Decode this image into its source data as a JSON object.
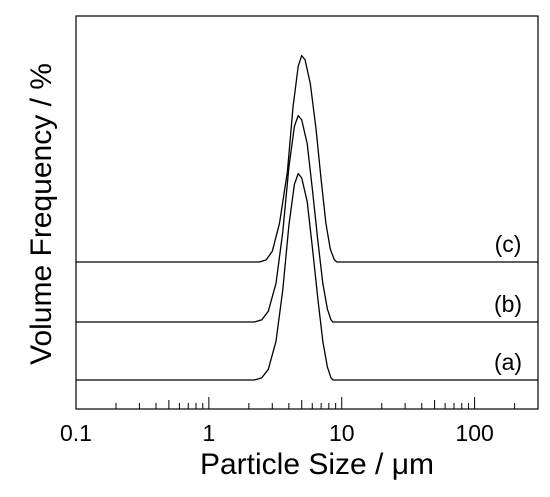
{
  "chart_data": {
    "type": "line",
    "title": "",
    "xlabel": "Particle Size / μm",
    "ylabel": "Volume Frequency / %",
    "xscale": "log",
    "xlim": [
      0.1,
      300
    ],
    "x_ticks": [
      "0.1",
      "1",
      "10",
      "100"
    ],
    "grid": false,
    "legend": "none",
    "line_color": "#000000",
    "series": [
      {
        "label": "(a)",
        "points": [
          [
            0.1,
            0
          ],
          [
            2.2,
            0
          ],
          [
            2.5,
            1
          ],
          [
            2.8,
            5
          ],
          [
            3.2,
            18
          ],
          [
            3.6,
            42
          ],
          [
            4.0,
            72
          ],
          [
            4.4,
            91
          ],
          [
            4.7,
            96
          ],
          [
            5.0,
            94
          ],
          [
            5.5,
            83
          ],
          [
            6.0,
            62
          ],
          [
            6.6,
            38
          ],
          [
            7.2,
            18
          ],
          [
            7.8,
            6
          ],
          [
            8.3,
            1
          ],
          [
            8.6,
            0
          ],
          [
            300,
            0
          ]
        ]
      },
      {
        "label": "(b)",
        "points": [
          [
            0.1,
            0
          ],
          [
            2.2,
            0
          ],
          [
            2.5,
            1
          ],
          [
            2.8,
            5
          ],
          [
            3.2,
            18
          ],
          [
            3.6,
            42
          ],
          [
            4.0,
            72
          ],
          [
            4.4,
            91
          ],
          [
            4.7,
            96
          ],
          [
            5.0,
            94
          ],
          [
            5.5,
            83
          ],
          [
            6.0,
            62
          ],
          [
            6.6,
            38
          ],
          [
            7.2,
            18
          ],
          [
            7.8,
            6
          ],
          [
            8.3,
            1
          ],
          [
            8.6,
            0
          ],
          [
            300,
            0
          ]
        ]
      },
      {
        "label": "(c)",
        "points": [
          [
            0.1,
            0
          ],
          [
            2.4,
            0
          ],
          [
            2.7,
            1
          ],
          [
            3.0,
            5
          ],
          [
            3.4,
            18
          ],
          [
            3.9,
            42
          ],
          [
            4.3,
            72
          ],
          [
            4.7,
            91
          ],
          [
            5.0,
            96
          ],
          [
            5.3,
            94
          ],
          [
            5.8,
            83
          ],
          [
            6.4,
            62
          ],
          [
            7.0,
            38
          ],
          [
            7.6,
            18
          ],
          [
            8.2,
            6
          ],
          [
            8.8,
            1
          ],
          [
            9.2,
            0
          ],
          [
            300,
            0
          ]
        ]
      }
    ]
  }
}
